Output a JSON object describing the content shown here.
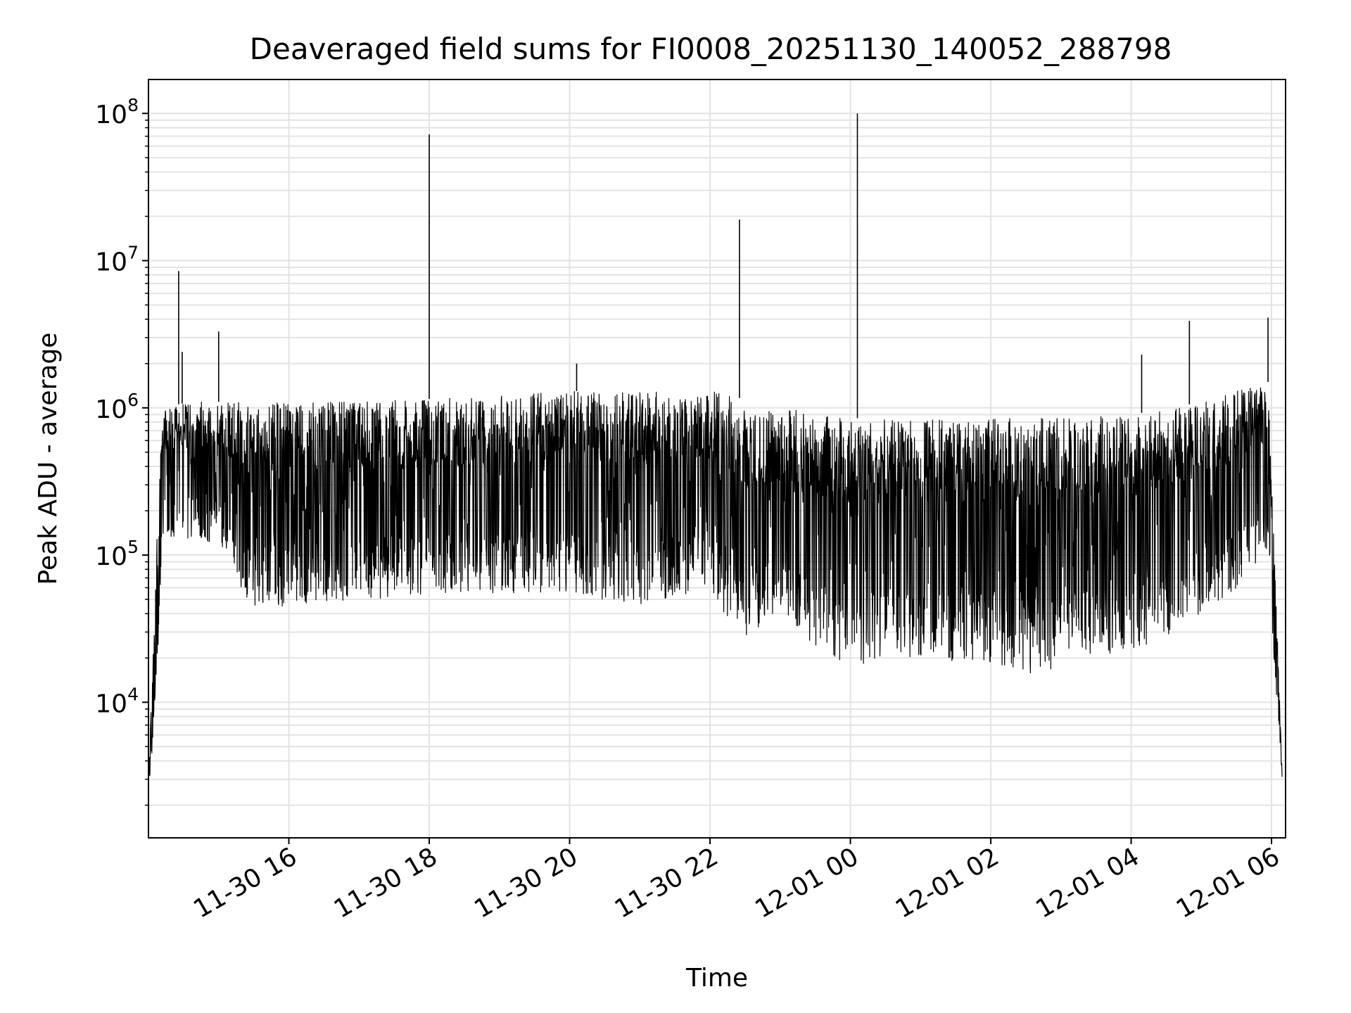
{
  "chart_data": {
    "type": "line",
    "title": "Deaveraged field sums for FI0008_20251130_140052_288798",
    "xlabel": "Time",
    "ylabel": "Peak ADU - average",
    "yscale": "log",
    "ylim": [
      1200,
      170000000
    ],
    "xlim_hours": [
      14.0,
      30.2
    ],
    "grid": true,
    "line_color": "#000000",
    "grid_color": "#e3e3e3",
    "x_ticks": [
      {
        "label": "11-30 16",
        "hour": 16
      },
      {
        "label": "11-30 18",
        "hour": 18
      },
      {
        "label": "11-30 20",
        "hour": 20
      },
      {
        "label": "11-30 22",
        "hour": 22
      },
      {
        "label": "12-01 00",
        "hour": 24
      },
      {
        "label": "12-01 02",
        "hour": 26
      },
      {
        "label": "12-01 04",
        "hour": 28
      },
      {
        "label": "12-01 06",
        "hour": 30
      }
    ],
    "y_ticks": [
      {
        "base": "10",
        "exp": "4",
        "value": 10000
      },
      {
        "base": "10",
        "exp": "5",
        "value": 100000
      },
      {
        "base": "10",
        "exp": "6",
        "value": 1000000
      },
      {
        "base": "10",
        "exp": "7",
        "value": 10000000
      },
      {
        "base": "10",
        "exp": "8",
        "value": 100000000
      }
    ],
    "envelope": [
      {
        "hour": 14.0,
        "high": 3000,
        "low": 2500
      },
      {
        "hour": 14.1,
        "high": 80000,
        "low": 8000
      },
      {
        "hour": 14.2,
        "high": 1000000,
        "low": 120000
      },
      {
        "hour": 14.6,
        "high": 1100000,
        "low": 130000
      },
      {
        "hour": 15.0,
        "high": 1100000,
        "low": 120000
      },
      {
        "hour": 15.4,
        "high": 1100000,
        "low": 45000
      },
      {
        "hour": 16.0,
        "high": 1100000,
        "low": 45000
      },
      {
        "hour": 17.0,
        "high": 1100000,
        "low": 48000
      },
      {
        "hour": 18.0,
        "high": 1150000,
        "low": 55000
      },
      {
        "hour": 19.0,
        "high": 1200000,
        "low": 55000
      },
      {
        "hour": 20.0,
        "high": 1300000,
        "low": 55000
      },
      {
        "hour": 21.0,
        "high": 1300000,
        "low": 45000
      },
      {
        "hour": 22.0,
        "high": 1300000,
        "low": 60000
      },
      {
        "hour": 22.4,
        "high": 1200000,
        "low": 25000
      },
      {
        "hour": 22.6,
        "high": 900000,
        "low": 30000
      },
      {
        "hour": 23.0,
        "high": 1000000,
        "low": 40000
      },
      {
        "hour": 23.6,
        "high": 900000,
        "low": 20000
      },
      {
        "hour": 24.0,
        "high": 850000,
        "low": 18000
      },
      {
        "hour": 25.0,
        "high": 850000,
        "low": 20000
      },
      {
        "hour": 26.0,
        "high": 850000,
        "low": 18000
      },
      {
        "hour": 26.7,
        "high": 850000,
        "low": 15000
      },
      {
        "hour": 27.0,
        "high": 850000,
        "low": 18000
      },
      {
        "hour": 28.0,
        "high": 900000,
        "low": 22000
      },
      {
        "hour": 28.6,
        "high": 1000000,
        "low": 30000
      },
      {
        "hour": 29.0,
        "high": 1100000,
        "low": 40000
      },
      {
        "hour": 29.5,
        "high": 1300000,
        "low": 60000
      },
      {
        "hour": 29.95,
        "high": 1500000,
        "low": 110000
      },
      {
        "hour": 30.05,
        "high": 80000,
        "low": 15000
      },
      {
        "hour": 30.15,
        "high": 3500,
        "low": 3000
      }
    ],
    "spikes": [
      {
        "hour": 14.43,
        "value": 8500000
      },
      {
        "hour": 14.48,
        "value": 2400000
      },
      {
        "hour": 15.0,
        "value": 3300000
      },
      {
        "hour": 18.0,
        "value": 72000000
      },
      {
        "hour": 20.1,
        "value": 2000000
      },
      {
        "hour": 22.42,
        "value": 19000000
      },
      {
        "hour": 24.1,
        "value": 100000000
      },
      {
        "hour": 28.15,
        "value": 2300000
      },
      {
        "hour": 28.83,
        "value": 3900000
      },
      {
        "hour": 29.95,
        "value": 4100000
      }
    ]
  }
}
